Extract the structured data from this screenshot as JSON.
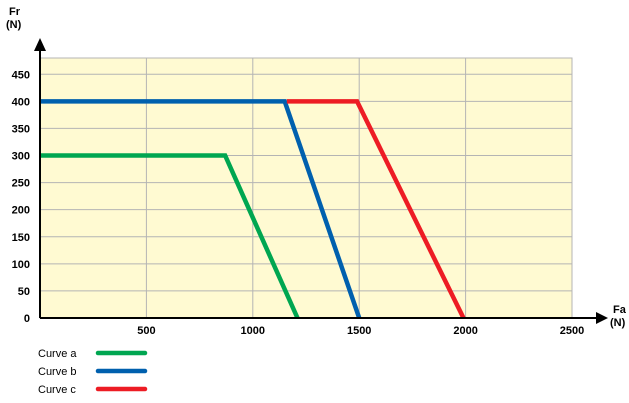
{
  "chart_data": {
    "type": "line",
    "title": "",
    "xlabel": {
      "name": "Fa",
      "unit": "(N)"
    },
    "ylabel": {
      "name": "Fr",
      "unit": "(N)"
    },
    "xlim": [
      0,
      2500
    ],
    "ylim": [
      0,
      480
    ],
    "x_ticks": [
      500,
      1000,
      1500,
      2000,
      2500
    ],
    "y_ticks": [
      0,
      50,
      100,
      150,
      200,
      250,
      300,
      350,
      400,
      450
    ],
    "grid": true,
    "background_color": "#FFFAD2",
    "grid_color": "#B4B4B4",
    "legend_position": "bottom-left",
    "series": [
      {
        "name": "Curve a",
        "color": "#00A651",
        "x": [
          0,
          870,
          1210
        ],
        "y": [
          300,
          300,
          0
        ]
      },
      {
        "name": "Curve b",
        "color": "#0060AE",
        "x": [
          0,
          1150,
          1500
        ],
        "y": [
          400,
          400,
          0
        ]
      },
      {
        "name": "Curve c",
        "color": "#ED1C24",
        "x": [
          1160,
          1490,
          1990
        ],
        "y": [
          400,
          400,
          0
        ]
      }
    ]
  }
}
